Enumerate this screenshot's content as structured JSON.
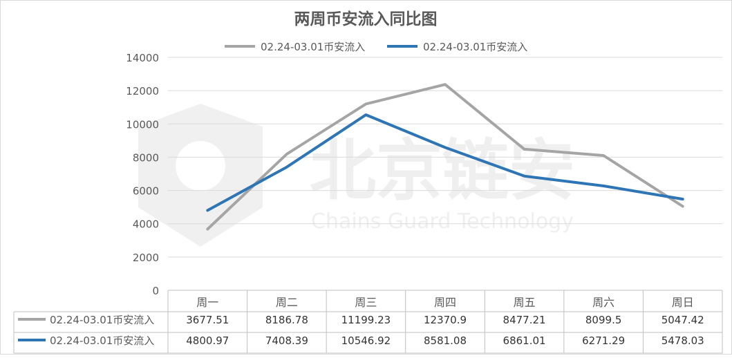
{
  "chart_data": {
    "type": "line",
    "title": "两周币安流入同比图",
    "categories": [
      "周一",
      "周二",
      "周三",
      "周四",
      "周五",
      "周六",
      "周日"
    ],
    "series": [
      {
        "name": "02.24-03.01币安流入",
        "color": "#a5a5a5",
        "values": [
          3677.51,
          8186.78,
          11199.23,
          12370.9,
          8477.21,
          8099.5,
          5047.42
        ],
        "labels": [
          "3677.51",
          "8186.78",
          "11199.23",
          "12370.9",
          "8477.21",
          "8099.5",
          "5047.42"
        ]
      },
      {
        "name": "02.24-03.01币安流入",
        "color": "#2e75b6",
        "values": [
          4800.97,
          7408.39,
          10546.92,
          8581.08,
          6861.01,
          6271.29,
          5478.03
        ],
        "labels": [
          "4800.97",
          "7408.39",
          "10546.92",
          "8581.08",
          "6861.01",
          "6271.29",
          "5478.03"
        ]
      }
    ],
    "ylim": [
      0,
      14000
    ],
    "yticks": [
      "0",
      "2000",
      "4000",
      "6000",
      "8000",
      "10000",
      "12000",
      "14000"
    ],
    "grid": true,
    "legend": "top",
    "data_table": true
  },
  "watermark": {
    "logo_text": "北京链安",
    "subtitle": "Chains Guard Technology"
  }
}
